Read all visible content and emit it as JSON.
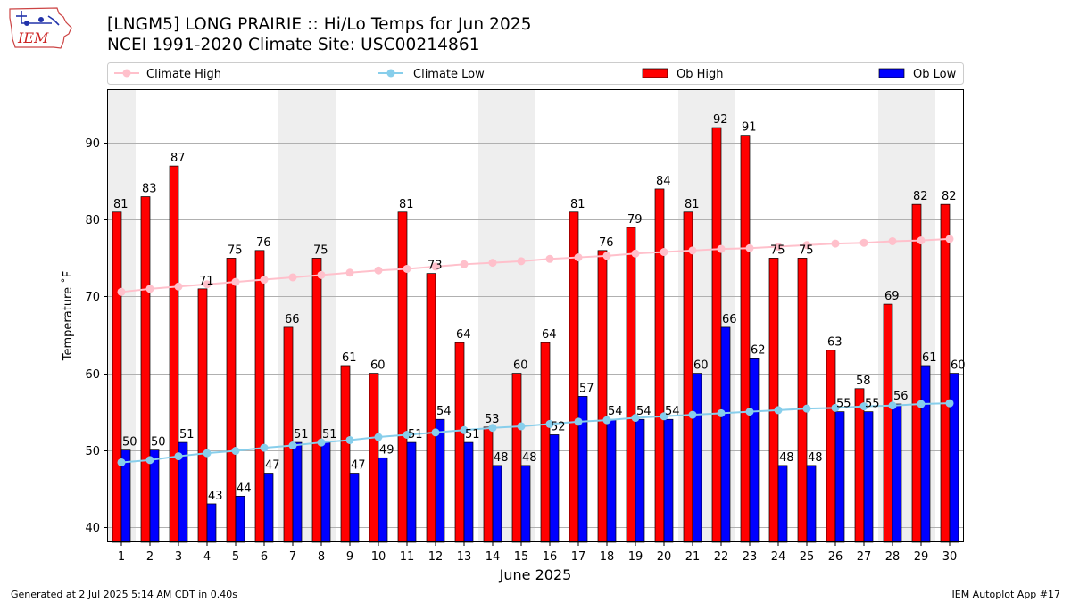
{
  "header": {
    "title_line1": "[LNGM5] LONG PRAIRIE :: Hi/Lo Temps for Jun 2025",
    "title_line2": "NCEI 1991-2020 Climate Site: USC00214861",
    "logo_text": "IEM"
  },
  "footer": {
    "left": "Generated at 2 Jul 2025 5:14 AM CDT in 0.40s",
    "right": "IEM Autoplot App #17"
  },
  "colors": {
    "ob_high": "#ff0000",
    "ob_low": "#0000ff",
    "climate_high": "#ffc0cb",
    "climate_low": "#87ceeb",
    "weekend_band": "#eeeeee",
    "grid": "#b0b0b0"
  },
  "chart_data": {
    "type": "bar",
    "xlabel": "June 2025",
    "ylabel": "Temperature ˚F",
    "ylim": [
      38,
      97
    ],
    "yticks": [
      40,
      50,
      60,
      70,
      80,
      90
    ],
    "grid": "horizontal",
    "legend_placement": "top, above plot",
    "categories": [
      "1",
      "2",
      "3",
      "4",
      "5",
      "6",
      "7",
      "8",
      "9",
      "10",
      "11",
      "12",
      "13",
      "14",
      "15",
      "16",
      "17",
      "18",
      "19",
      "20",
      "21",
      "22",
      "23",
      "24",
      "25",
      "26",
      "27",
      "28",
      "29",
      "30"
    ],
    "shaded_days": [
      "1",
      "7",
      "8",
      "14",
      "15",
      "21",
      "22",
      "28",
      "29"
    ],
    "series": [
      {
        "name": "Ob High",
        "kind": "bar",
        "values": [
          81,
          83,
          87,
          71,
          75,
          76,
          66,
          75,
          61,
          60,
          81,
          73,
          64,
          53,
          60,
          64,
          81,
          76,
          79,
          84,
          81,
          92,
          91,
          75,
          75,
          63,
          58,
          69,
          82,
          82
        ]
      },
      {
        "name": "Ob Low",
        "kind": "bar",
        "values": [
          50,
          50,
          51,
          43,
          44,
          47,
          51,
          51,
          47,
          49,
          51,
          54,
          51,
          48,
          48,
          52,
          57,
          54,
          54,
          54,
          60,
          66,
          62,
          48,
          48,
          55,
          55,
          56,
          61,
          60
        ]
      },
      {
        "name": "Climate High",
        "kind": "line",
        "values": [
          70.6,
          71.0,
          71.3,
          71.6,
          71.9,
          72.2,
          72.5,
          72.8,
          73.1,
          73.4,
          73.6,
          73.9,
          74.2,
          74.4,
          74.6,
          74.9,
          75.1,
          75.3,
          75.6,
          75.8,
          76.0,
          76.2,
          76.3,
          76.5,
          76.7,
          76.9,
          77.0,
          77.2,
          77.3,
          77.5
        ]
      },
      {
        "name": "Climate Low",
        "kind": "line",
        "values": [
          48.4,
          48.7,
          49.2,
          49.6,
          49.9,
          50.3,
          50.6,
          51.0,
          51.3,
          51.7,
          52.0,
          52.3,
          52.6,
          52.9,
          53.1,
          53.4,
          53.7,
          53.9,
          54.2,
          54.4,
          54.6,
          54.8,
          55.0,
          55.2,
          55.4,
          55.5,
          55.7,
          55.8,
          56.0,
          56.1
        ]
      }
    ]
  }
}
